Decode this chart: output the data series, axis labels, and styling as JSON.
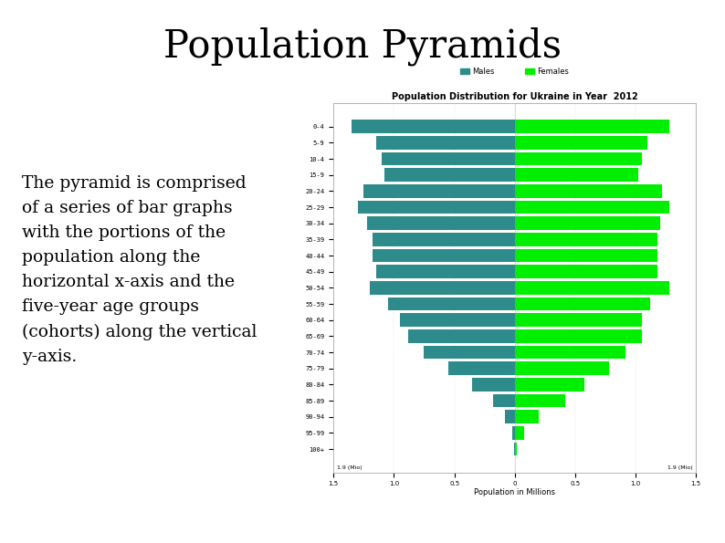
{
  "slide_title": "Population Pyramids",
  "slide_text": "The pyramid is comprised\nof a series of bar graphs\nwith the portions of the\npopulation along the\nhorizontal x-axis and the\nfive-year age groups\n(cohorts) along the vertical\ny-axis.",
  "chart_title": "Population Distribution for Ukraine in Year  2012",
  "xlabel": "Population in Millions",
  "legend_males": "Males",
  "legend_females": "Females",
  "male_color": "#2e8b8b",
  "female_color": "#00ee00",
  "age_groups": [
    "100+",
    "95-99",
    "90-94",
    "85-89",
    "80-84",
    "75-79",
    "70-74",
    "65-69",
    "60-64",
    "55-59",
    "50-54",
    "45-49",
    "40-44",
    "35-39",
    "30-34",
    "25-29",
    "20-24",
    "15-9",
    "10-4",
    "5-9",
    "0-4"
  ],
  "males": [
    0.005,
    0.02,
    0.08,
    0.18,
    0.35,
    0.55,
    0.75,
    0.88,
    0.95,
    1.05,
    1.2,
    1.15,
    1.18,
    1.18,
    1.22,
    1.3,
    1.25,
    1.08,
    1.1,
    1.15,
    1.35
  ],
  "females": [
    0.015,
    0.08,
    0.2,
    0.42,
    0.58,
    0.78,
    0.92,
    1.05,
    1.05,
    1.12,
    1.28,
    1.18,
    1.18,
    1.18,
    1.2,
    1.28,
    1.22,
    1.02,
    1.05,
    1.1,
    1.28
  ],
  "xlim": 1.5,
  "bg_color": "#ffffff",
  "border_color": "#aaaaaa",
  "slide_title_fontsize": 30,
  "text_fontsize": 13.5,
  "chart_title_fontsize": 7,
  "axis_label_fontsize": 6,
  "tick_fontsize": 5,
  "legend_fontsize": 6
}
